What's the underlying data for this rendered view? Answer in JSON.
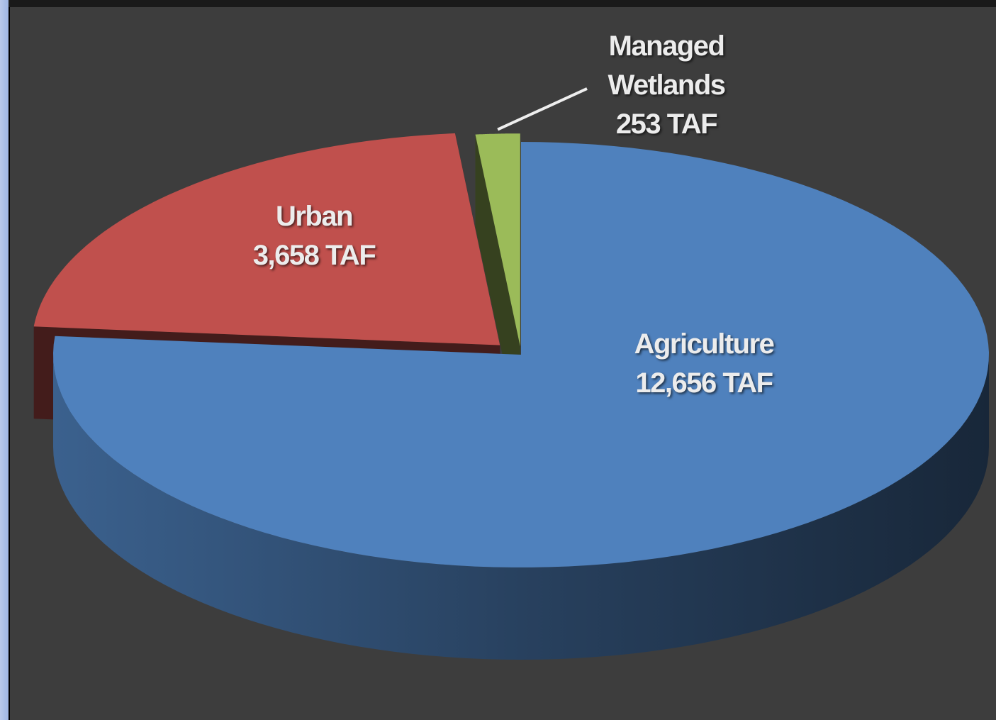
{
  "chart_data": {
    "type": "pie3d",
    "categories": [
      "Agriculture",
      "Urban",
      "Managed Wetlands"
    ],
    "values": [
      12656,
      3658,
      253
    ],
    "value_labels": [
      "12,656 TAF",
      "3,658 TAF",
      "253 TAF"
    ],
    "colors": [
      "#4f81bd",
      "#c0504d",
      "#9bbb59"
    ]
  }
}
